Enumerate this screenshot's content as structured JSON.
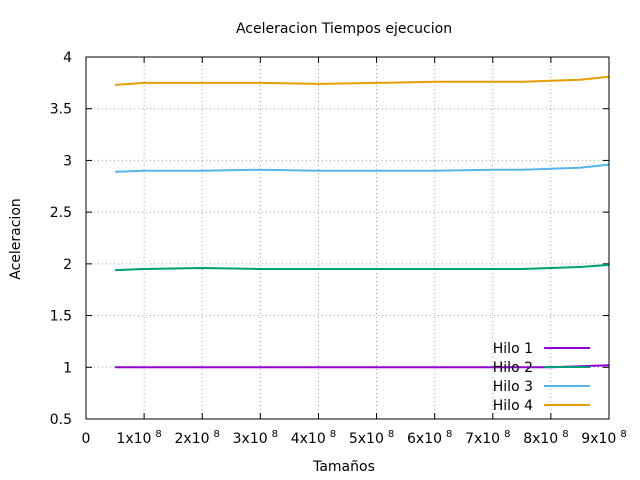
{
  "chart_data": {
    "type": "line",
    "title": "Aceleracion Tiempos ejecucion",
    "xlabel": "Tamaños",
    "ylabel": "Aceleracion",
    "xlim": [
      0,
      900000000
    ],
    "ylim": [
      0.5,
      4
    ],
    "grid": true,
    "legend_position": "bottom-right",
    "x_ticks": [
      {
        "value": 0,
        "mantissa": "0",
        "exponent": ""
      },
      {
        "value": 100000000,
        "mantissa": "1x10",
        "exponent": "8"
      },
      {
        "value": 200000000,
        "mantissa": "2x10",
        "exponent": "8"
      },
      {
        "value": 300000000,
        "mantissa": "3x10",
        "exponent": "8"
      },
      {
        "value": 400000000,
        "mantissa": "4x10",
        "exponent": "8"
      },
      {
        "value": 500000000,
        "mantissa": "5x10",
        "exponent": "8"
      },
      {
        "value": 600000000,
        "mantissa": "6x10",
        "exponent": "8"
      },
      {
        "value": 700000000,
        "mantissa": "7x10",
        "exponent": "8"
      },
      {
        "value": 800000000,
        "mantissa": "8x10",
        "exponent": "8"
      },
      {
        "value": 900000000,
        "mantissa": "9x10",
        "exponent": "8"
      }
    ],
    "y_ticks": [
      {
        "value": 0.5,
        "label": "0.5"
      },
      {
        "value": 1,
        "label": "1"
      },
      {
        "value": 1.5,
        "label": "1.5"
      },
      {
        "value": 2,
        "label": "2"
      },
      {
        "value": 2.5,
        "label": "2.5"
      },
      {
        "value": 3,
        "label": "3"
      },
      {
        "value": 3.5,
        "label": "3.5"
      },
      {
        "value": 4,
        "label": "4"
      }
    ],
    "series": [
      {
        "name": "Hilo 1",
        "color": "#9400d3",
        "x": [
          50000000,
          100000000,
          200000000,
          300000000,
          400000000,
          500000000,
          600000000,
          700000000,
          750000000,
          800000000,
          850000000,
          900000000
        ],
        "y": [
          1.0,
          1.0,
          1.0,
          1.0,
          1.0,
          1.0,
          1.0,
          1.0,
          1.0,
          1.0,
          1.01,
          1.02
        ]
      },
      {
        "name": "Hilo 2",
        "color": "#009e73",
        "x": [
          50000000,
          100000000,
          200000000,
          300000000,
          400000000,
          500000000,
          600000000,
          700000000,
          750000000,
          800000000,
          850000000,
          900000000
        ],
        "y": [
          1.94,
          1.95,
          1.96,
          1.95,
          1.95,
          1.95,
          1.95,
          1.95,
          1.95,
          1.96,
          1.97,
          1.99
        ]
      },
      {
        "name": "Hilo 3",
        "color": "#56b4e9",
        "x": [
          50000000,
          100000000,
          200000000,
          300000000,
          400000000,
          500000000,
          600000000,
          700000000,
          750000000,
          800000000,
          850000000,
          900000000
        ],
        "y": [
          2.89,
          2.9,
          2.9,
          2.91,
          2.9,
          2.9,
          2.9,
          2.91,
          2.91,
          2.92,
          2.93,
          2.96
        ]
      },
      {
        "name": "Hilo 4",
        "color": "#e69f00",
        "x": [
          50000000,
          100000000,
          200000000,
          300000000,
          400000000,
          500000000,
          600000000,
          700000000,
          750000000,
          800000000,
          850000000,
          900000000
        ],
        "y": [
          3.73,
          3.75,
          3.75,
          3.75,
          3.74,
          3.75,
          3.76,
          3.76,
          3.76,
          3.77,
          3.78,
          3.81
        ]
      }
    ]
  }
}
